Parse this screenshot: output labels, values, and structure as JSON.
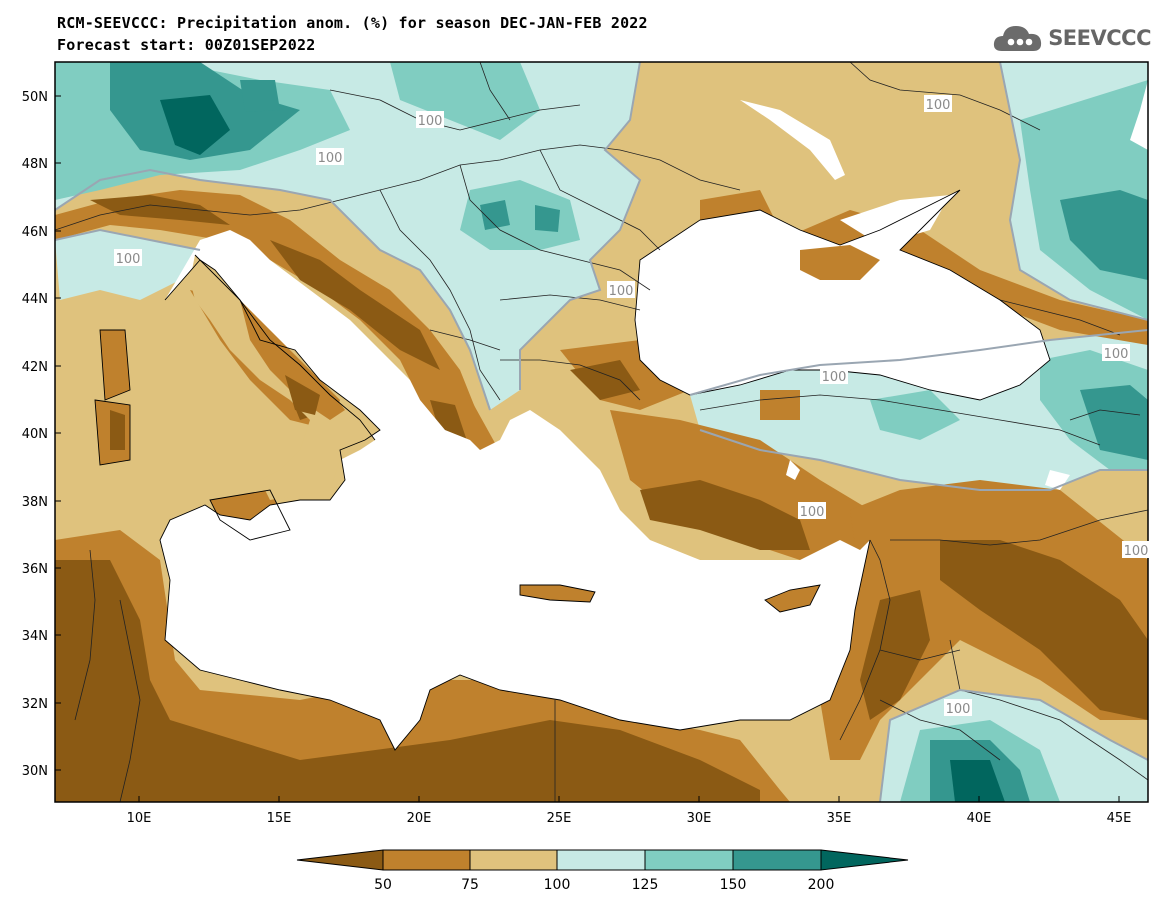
{
  "title": "RCM-SEEVCCC: Precipitation anom. (%) for season DEC-JAN-FEB 2022",
  "subtitle": "Forecast start: 00Z01SEP2022",
  "logo": {
    "text": "SEEVCCC",
    "icon": "cloud-icon"
  },
  "map": {
    "lat_labels": [
      "50N",
      "48N",
      "46N",
      "44N",
      "42N",
      "40N",
      "38N",
      "36N",
      "34N",
      "32N",
      "30N"
    ],
    "lon_labels": [
      "10E",
      "15E",
      "20E",
      "25E",
      "30E",
      "35E",
      "40E",
      "45E"
    ],
    "contour_labels": [
      "100",
      "100",
      "100",
      "100",
      "100",
      "100",
      "100",
      "100",
      "100",
      "100"
    ],
    "extent": {
      "lon": [
        7,
        46
      ],
      "lat": [
        29,
        51
      ]
    }
  },
  "legend": {
    "ticks": [
      "50",
      "75",
      "100",
      "125",
      "150",
      "200"
    ],
    "colors": [
      "#8b5a14",
      "#bf812d",
      "#dfc27d",
      "#c7eae5",
      "#80cdc1",
      "#35978f",
      "#01665e"
    ]
  }
}
